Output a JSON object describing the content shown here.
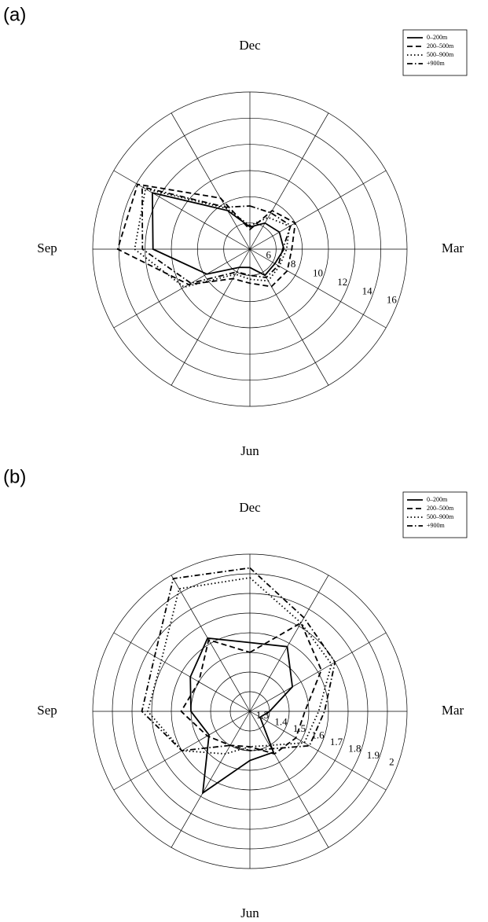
{
  "chart_data": [
    {
      "type": "radar",
      "label": "(a)",
      "categories": [
        "Dec",
        null,
        null,
        "Mar",
        null,
        null,
        "Jun",
        null,
        null,
        "Sep",
        null,
        null
      ],
      "rlim": [
        4,
        16
      ],
      "rticks": [
        6,
        8,
        10,
        12,
        14,
        16
      ],
      "grid": true,
      "legend": "upper right",
      "series": [
        {
          "name": "0–200m",
          "color": "#000000",
          "style": "solid",
          "values": [
            5.7,
            6.3,
            6.6,
            6.6,
            6.2,
            6.3,
            5.4,
            5.6,
            7.8,
            11.4,
            12.6,
            7.4
          ]
        },
        {
          "name": "200–500m",
          "color": "#000000",
          "style": "dashed",
          "values": [
            5.5,
            7.4,
            8.0,
            7.2,
            7.3,
            7.3,
            6.6,
            6.6,
            9.4,
            14.1,
            13.9,
            8.5
          ]
        },
        {
          "name": "500–900m",
          "color": "#000000",
          "style": "dotted",
          "values": [
            5.8,
            6.8,
            7.5,
            6.8,
            6.6,
            6.8,
            6.3,
            6.2,
            9.8,
            12.8,
            13.2,
            7.6
          ]
        },
        {
          "name": "+900m",
          "color": "#000000",
          "style": "dashdot",
          "values": [
            7.3,
            7.2,
            7.6,
            6.5,
            6.5,
            6.5,
            6.0,
            6.0,
            9.2,
            12.2,
            13.5,
            7.7
          ]
        }
      ]
    },
    {
      "type": "radar",
      "label": "(b)",
      "categories": [
        "Dec",
        null,
        null,
        "Mar",
        null,
        null,
        "Jun",
        null,
        null,
        "Sep",
        null,
        null
      ],
      "rlim": [
        1.2,
        2
      ],
      "rticks": [
        1.3,
        1.4,
        1.5,
        1.6,
        1.7,
        1.8,
        1.9,
        2
      ],
      "grid": true,
      "legend": "upper right",
      "series": [
        {
          "name": "0–200m",
          "color": "#000000",
          "style": "solid",
          "values": [
            1.55,
            1.58,
            1.45,
            1.3,
            1.26,
            1.44,
            1.45,
            1.68,
            1.44,
            1.5,
            1.55,
            1.63
          ]
        },
        {
          "name": "200–500m",
          "color": "#000000",
          "style": "dashed",
          "values": [
            1.5,
            1.72,
            1.62,
            1.48,
            1.47,
            1.45,
            1.38,
            1.4,
            1.45,
            1.55,
            1.5,
            1.62
          ]
        },
        {
          "name": "500–900m",
          "color": "#000000",
          "style": "dotted",
          "values": [
            1.88,
            1.72,
            1.68,
            1.55,
            1.52,
            1.4,
            1.38,
            1.45,
            1.6,
            1.72,
            1.72,
            1.92
          ]
        },
        {
          "name": "+900m",
          "color": "#000000",
          "style": "dashdot",
          "values": [
            1.93,
            1.75,
            1.7,
            1.58,
            1.55,
            1.42,
            1.4,
            1.4,
            1.6,
            1.75,
            1.76,
            1.98
          ]
        }
      ]
    }
  ]
}
